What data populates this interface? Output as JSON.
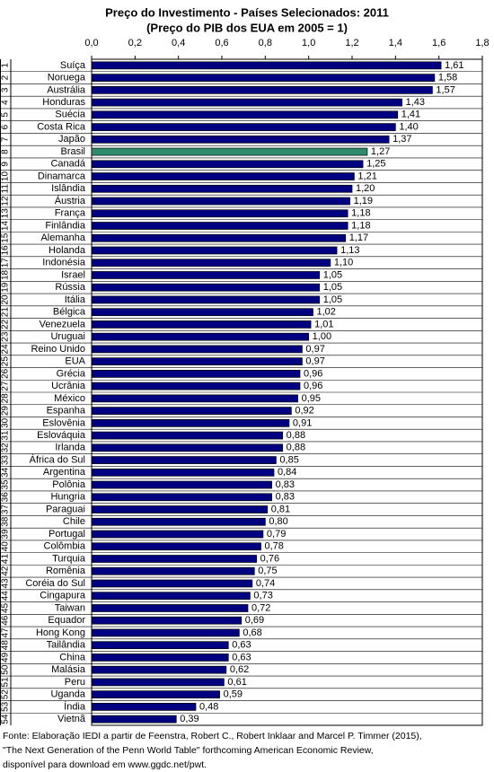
{
  "chart_data": {
    "type": "barh",
    "title": "Preço do Investimento - Países Selecionados: 2011",
    "subtitle": "(Preço do PIB dos EUA em 2005 = 1)",
    "ranks": [
      1,
      2,
      3,
      4,
      5,
      6,
      7,
      8,
      9,
      10,
      11,
      12,
      13,
      14,
      15,
      16,
      17,
      18,
      19,
      20,
      21,
      22,
      23,
      24,
      25,
      26,
      27,
      28,
      29,
      30,
      31,
      32,
      33,
      34,
      35,
      36,
      37,
      38,
      39,
      40,
      41,
      42,
      43,
      44,
      45,
      46,
      47,
      48,
      49,
      50,
      51,
      52,
      53,
      54
    ],
    "categories": [
      "Suíça",
      "Noruega",
      "Austrália",
      "Honduras",
      "Suécia",
      "Costa Rica",
      "Japão",
      "Brasil",
      "Canadá",
      "Dinamarca",
      "Islândia",
      "Áustria",
      "França",
      "Finlândia",
      "Alemanha",
      "Holanda",
      "Indonésia",
      "Israel",
      "Rússia",
      "Itália",
      "Bélgica",
      "Venezuela",
      "Uruguai",
      "Reino Unido",
      "EUA",
      "Grécia",
      "Ucrânia",
      "México",
      "Espanha",
      "Eslovênia",
      "Eslováquia",
      "Irlanda",
      "África do Sul",
      "Argentina",
      "Polônia",
      "Hungria",
      "Paraguai",
      "Chile",
      "Portugal",
      "Colômbia",
      "Turquia",
      "Romênia",
      "Coréia do Sul",
      "Cingapura",
      "Taiwan",
      "Equador",
      "Hong Kong",
      "Tailândia",
      "China",
      "Malásia",
      "Peru",
      "Uganda",
      "Índia",
      "Vietnã"
    ],
    "values": [
      1.61,
      1.58,
      1.57,
      1.43,
      1.41,
      1.4,
      1.37,
      1.27,
      1.25,
      1.21,
      1.2,
      1.19,
      1.18,
      1.18,
      1.17,
      1.13,
      1.1,
      1.05,
      1.05,
      1.05,
      1.02,
      1.01,
      1.0,
      0.97,
      0.97,
      0.96,
      0.96,
      0.95,
      0.92,
      0.91,
      0.88,
      0.88,
      0.85,
      0.84,
      0.83,
      0.83,
      0.81,
      0.8,
      0.79,
      0.78,
      0.76,
      0.75,
      0.74,
      0.73,
      0.72,
      0.69,
      0.68,
      0.63,
      0.63,
      0.62,
      0.61,
      0.59,
      0.48,
      0.39
    ],
    "value_labels": [
      "1,61",
      "1,58",
      "1,57",
      "1,43",
      "1,41",
      "1,40",
      "1,37",
      "1,27",
      "1,25",
      "1,21",
      "1,20",
      "1,19",
      "1,18",
      "1,18",
      "1,17",
      "1,13",
      "1,10",
      "1,05",
      "1,05",
      "1,05",
      "1,02",
      "1,01",
      "1,00",
      "0,97",
      "0,97",
      "0,96",
      "0,96",
      "0,95",
      "0,92",
      "0,91",
      "0,88",
      "0,88",
      "0,85",
      "0,84",
      "0,83",
      "0,83",
      "0,81",
      "0,80",
      "0,79",
      "0,78",
      "0,76",
      "0,75",
      "0,74",
      "0,73",
      "0,72",
      "0,69",
      "0,68",
      "0,63",
      "0,63",
      "0,62",
      "0,61",
      "0,59",
      "0,48",
      "0,39"
    ],
    "colors": [
      "#000080",
      "#000080",
      "#000080",
      "#000080",
      "#000080",
      "#000080",
      "#000080",
      "#2e8b6e",
      "#000080",
      "#000080",
      "#000080",
      "#000080",
      "#000080",
      "#000080",
      "#000080",
      "#000080",
      "#000080",
      "#000080",
      "#000080",
      "#000080",
      "#000080",
      "#000080",
      "#000080",
      "#000080",
      "#000080",
      "#000080",
      "#000080",
      "#000080",
      "#000080",
      "#000080",
      "#000080",
      "#000080",
      "#000080",
      "#000080",
      "#000080",
      "#000080",
      "#000080",
      "#000080",
      "#000080",
      "#000080",
      "#000080",
      "#000080",
      "#000080",
      "#000080",
      "#000080",
      "#000080",
      "#000080",
      "#000080",
      "#000080",
      "#000080",
      "#000080",
      "#000080",
      "#000080",
      "#000080"
    ],
    "xlim": [
      0,
      1.8
    ],
    "xticks": [
      {
        "value": 0,
        "label": "0,0"
      },
      {
        "value": 0.2,
        "label": "0,2"
      },
      {
        "value": 0.4,
        "label": "0,4"
      },
      {
        "value": 0.6,
        "label": "0,6"
      },
      {
        "value": 0.8,
        "label": "0,8"
      },
      {
        "value": 1.0,
        "label": "1,0"
      },
      {
        "value": 1.2,
        "label": "1,2"
      },
      {
        "value": 1.4,
        "label": "1,4"
      },
      {
        "value": 1.6,
        "label": "1,6"
      },
      {
        "value": 1.8,
        "label": "1,8"
      }
    ],
    "footnote": [
      "Fonte: Elaboração IEDI a partir de Feenstra, Robert C., Robert Inklaar and Marcel P. Timmer (2015),",
      "\"The Next Generation of the Penn World Table\" forthcoming American Economic Review,",
      "disponível para download em www.ggdc.net/pwt."
    ]
  }
}
